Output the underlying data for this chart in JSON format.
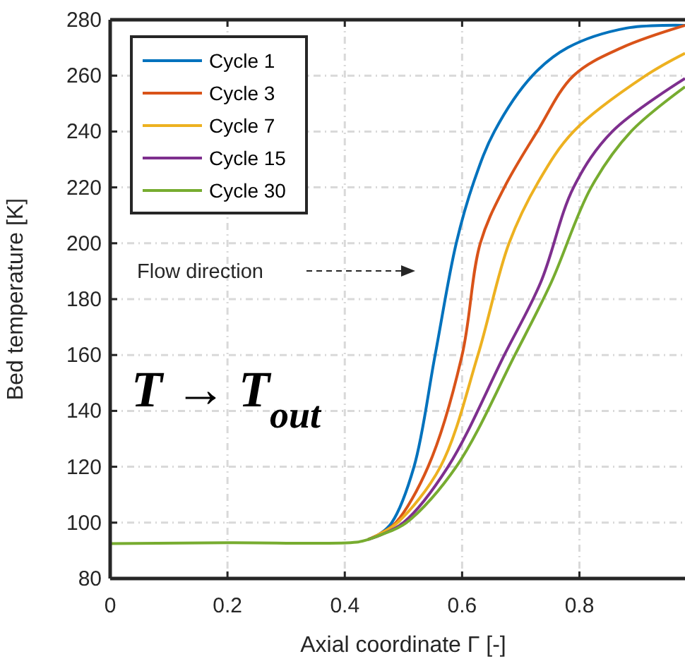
{
  "chart_data": {
    "type": "line",
    "xlabel": "Axial coordinate Γ [-]",
    "ylabel": "Bed temperature [K]",
    "xlim": [
      0,
      0.98
    ],
    "ylim": [
      80,
      280
    ],
    "xticks": [
      0,
      0.2,
      0.4,
      0.6,
      0.8
    ],
    "yticks": [
      80,
      100,
      120,
      140,
      160,
      180,
      200,
      220,
      240,
      260,
      280
    ],
    "grid": true,
    "legend": "top left",
    "line_style": "solid",
    "annotations": [
      "Flow direction",
      "T → T$_{out}$"
    ],
    "series": [
      {
        "name": "Cycle 1",
        "color": "#0072bd",
        "x": [
          0.44,
          0.46,
          0.48,
          0.518,
          0.554,
          0.59,
          0.62,
          0.655,
          0.72,
          0.78,
          0.88,
          0.98
        ],
        "values": [
          94,
          96,
          100,
          120,
          160,
          200,
          222,
          240,
          260,
          270,
          277,
          278
        ]
      },
      {
        "name": "Cycle 3",
        "color": "#d95319",
        "x": [
          0.44,
          0.46,
          0.487,
          0.542,
          0.6,
          0.631,
          0.672,
          0.728,
          0.79,
          0.872,
          0.98
        ],
        "values": [
          94,
          96,
          100,
          120,
          160,
          200,
          220,
          240,
          260,
          270,
          278
        ]
      },
      {
        "name": "Cycle 7",
        "color": "#edb120",
        "x": [
          0.44,
          0.46,
          0.49,
          0.563,
          0.627,
          0.68,
          0.73,
          0.79,
          0.913,
          0.98
        ],
        "values": [
          94,
          96,
          100,
          120,
          160,
          200,
          222,
          240,
          260,
          268
        ]
      },
      {
        "name": "Cycle 15",
        "color": "#7e2f8e",
        "x": [
          0.44,
          0.46,
          0.5,
          0.576,
          0.672,
          0.734,
          0.79,
          0.856,
          0.98
        ],
        "values": [
          94,
          95.5,
          100,
          120,
          160,
          186,
          220,
          240,
          259
        ]
      },
      {
        "name": "Cycle 30",
        "color": "#77ac30",
        "x": [
          0,
          0.2,
          0.42,
          0.44,
          0.46,
          0.505,
          0.59,
          0.69,
          0.752,
          0.82,
          0.888,
          0.98
        ],
        "values": [
          92.5,
          92.8,
          93,
          94,
          95.5,
          100,
          120,
          160,
          186,
          220,
          240,
          256
        ]
      }
    ]
  }
}
